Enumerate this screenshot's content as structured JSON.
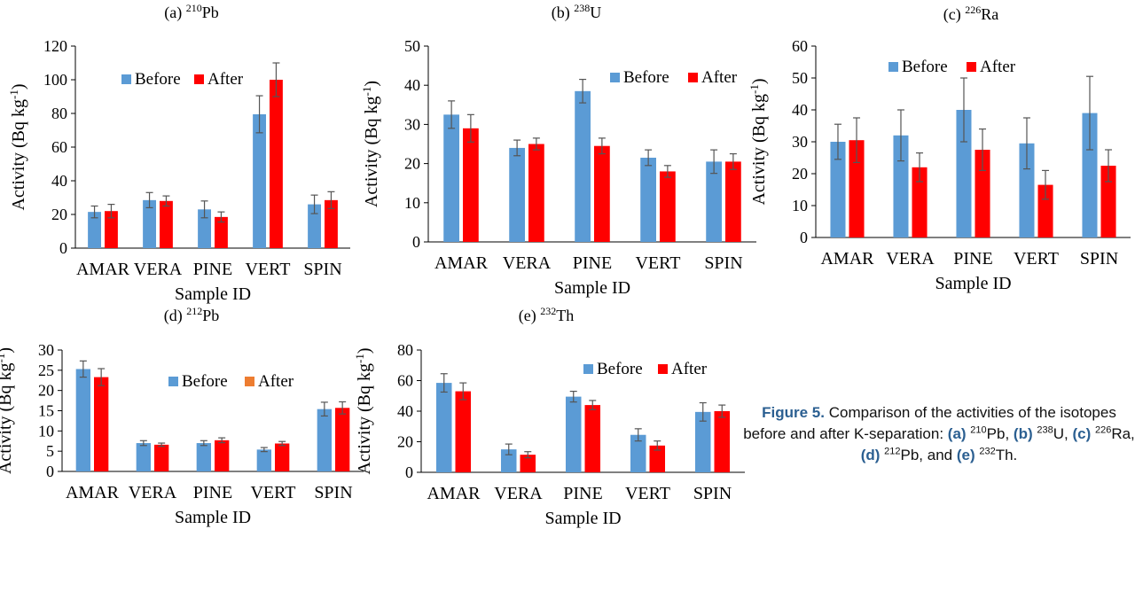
{
  "figure": {
    "caption": {
      "label": "Figure 5.",
      "text_1": " Comparison of the activities of the isotopes before and after K-separation: ",
      "a": "(a)",
      "iso_a_mass": "210",
      "iso_a_sym": "Pb, ",
      "b": "(b)",
      "iso_b_mass": "238",
      "iso_b_sym": "U, ",
      "c": "(c)",
      "iso_c_mass": "226",
      "iso_c_sym": "Ra, ",
      "d": "(d)",
      "iso_d_mass": "212",
      "iso_d_sym": "Pb, and ",
      "e": "(e)",
      "iso_e_mass": "232",
      "iso_e_sym": "Th."
    }
  },
  "colors": {
    "before": "#5b9bd5",
    "after": "#ff0000",
    "after_legend_d": "#ed7d31",
    "axis": "#000000",
    "caption_accent": "#2b5f91"
  },
  "chart_data": [
    {
      "type": "bar",
      "panel": "(a)",
      "isotope_mass": "210",
      "isotope_symbol": "Pb",
      "categories": [
        "AMAR",
        "VERA",
        "PINE",
        "VERT",
        "SPIN"
      ],
      "series": [
        {
          "name": "Before",
          "values": [
            21.5,
            28.5,
            23,
            79.5,
            26
          ],
          "errors": [
            3.5,
            4.5,
            5,
            11,
            5.5
          ]
        },
        {
          "name": "After",
          "values": [
            22,
            28,
            18.5,
            100,
            28.5
          ],
          "errors": [
            4,
            3,
            3,
            10,
            5
          ]
        }
      ],
      "xlabel": "Sample ID",
      "ylabel": "Activity (Bq kg",
      "ylabel_sup": "-1",
      "ylabel_end": ")",
      "ylim": [
        0,
        120
      ],
      "yticks": [
        0,
        20,
        40,
        60,
        80,
        100,
        120
      ],
      "legend_placement": "top-center"
    },
    {
      "type": "bar",
      "panel": "(b)",
      "isotope_mass": "238",
      "isotope_symbol": "U",
      "categories": [
        "AMAR",
        "VERA",
        "PINE",
        "VERT",
        "SPIN"
      ],
      "series": [
        {
          "name": "Before",
          "values": [
            32.5,
            24,
            38.5,
            21.5,
            20.5
          ],
          "errors": [
            3.5,
            2,
            3,
            2,
            3
          ]
        },
        {
          "name": "After",
          "values": [
            29,
            25,
            24.5,
            18,
            20.5
          ],
          "errors": [
            3.5,
            1.5,
            2,
            1.5,
            2
          ]
        }
      ],
      "xlabel": "Sample ID",
      "ylabel": "Activity (Bq kg",
      "ylabel_sup": "-1",
      "ylabel_end": ")",
      "ylim": [
        0,
        50
      ],
      "yticks": [
        0,
        10,
        20,
        30,
        40,
        50
      ],
      "legend_placement": "top-right"
    },
    {
      "type": "bar",
      "panel": "(c)",
      "isotope_mass": "226",
      "isotope_symbol": "Ra",
      "categories": [
        "AMAR",
        "VERA",
        "PINE",
        "VERT",
        "SPIN"
      ],
      "series": [
        {
          "name": "Before",
          "values": [
            30,
            32,
            40,
            29.5,
            39
          ],
          "errors": [
            5.5,
            8,
            10,
            8,
            11.5
          ]
        },
        {
          "name": "After",
          "values": [
            30.5,
            22,
            27.5,
            16.5,
            22.5
          ],
          "errors": [
            7,
            4.5,
            6.5,
            4.5,
            5
          ]
        }
      ],
      "xlabel": "Sample ID",
      "ylabel": "Activity (Bq kg",
      "ylabel_sup": "-1",
      "ylabel_end": ")",
      "ylim": [
        0,
        60
      ],
      "yticks": [
        0,
        10,
        20,
        30,
        40,
        50,
        60
      ],
      "legend_placement": "top-center"
    },
    {
      "type": "bar",
      "panel": "(d)",
      "isotope_mass": "212",
      "isotope_symbol": "Pb",
      "categories": [
        "AMAR",
        "VERA",
        "PINE",
        "VERT",
        "SPIN"
      ],
      "series": [
        {
          "name": "Before",
          "values": [
            25.3,
            7,
            7,
            5.4,
            15.4
          ],
          "errors": [
            2,
            0.6,
            0.6,
            0.5,
            1.7
          ]
        },
        {
          "name": "After",
          "values": [
            23.3,
            6.6,
            7.7,
            6.9,
            15.7
          ],
          "errors": [
            2.1,
            0.4,
            0.6,
            0.5,
            1.5
          ]
        }
      ],
      "xlabel": "Sample ID",
      "ylabel": "Activity (Bq kg",
      "ylabel_sup": "-1",
      "ylabel_end": ")",
      "ylim": [
        0,
        30
      ],
      "yticks": [
        0,
        5,
        10,
        15,
        20,
        25,
        30
      ],
      "legend_placement": "top-right"
    },
    {
      "type": "bar",
      "panel": "(e)",
      "isotope_mass": "232",
      "isotope_symbol": "Th",
      "categories": [
        "AMAR",
        "VERA",
        "PINE",
        "VERT",
        "SPIN"
      ],
      "series": [
        {
          "name": "Before",
          "values": [
            58.5,
            15,
            49.5,
            24.5,
            39.5
          ],
          "errors": [
            6,
            3.5,
            3.5,
            4,
            6
          ]
        },
        {
          "name": "After",
          "values": [
            53,
            11.5,
            44,
            17.5,
            40
          ],
          "errors": [
            5.5,
            2,
            3,
            3,
            4
          ]
        }
      ],
      "xlabel": "Sample ID",
      "ylabel": "Activity (Bq kg",
      "ylabel_sup": "-1",
      "ylabel_end": ")",
      "ylim": [
        0,
        80
      ],
      "yticks": [
        0,
        20,
        40,
        60,
        80
      ],
      "legend_placement": "top-right"
    }
  ]
}
